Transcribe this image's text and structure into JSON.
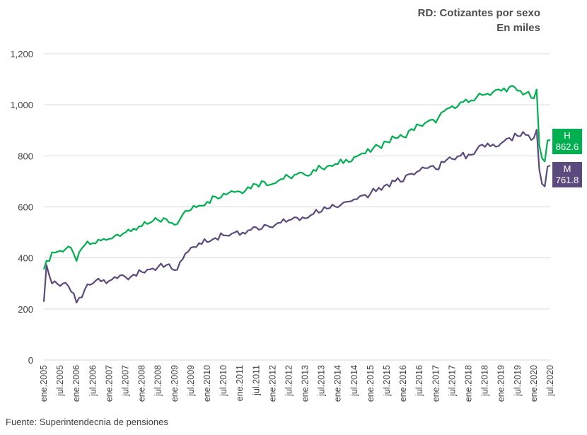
{
  "chart_data": {
    "type": "line",
    "title": "RD: Cotizantes por sexo",
    "subtitle": "En miles",
    "ylim": [
      0,
      1200
    ],
    "yticks": [
      0,
      200,
      400,
      600,
      800,
      1000,
      1200
    ],
    "ytick_labels": [
      "0",
      "200",
      "400",
      "600",
      "800",
      "1,000",
      "1,200"
    ],
    "x_start": "ene.2005",
    "x_end": "jul.2020",
    "x_tick_labels": [
      "ene.2005",
      "jul.2005",
      "ene.2006",
      "jul.2006",
      "ene.2007",
      "jul.2007",
      "ene.2008",
      "jul.2008",
      "ene.2009",
      "jul.2009",
      "ene.2010",
      "jul.2010",
      "ene.2011",
      "jul.2011",
      "ene.2012",
      "jul.2012",
      "ene.2013",
      "jul.2013",
      "ene.2014",
      "jul.2014",
      "ene.2015",
      "jul.2015",
      "ene.2016",
      "jul.2016",
      "ene.2017",
      "jul.2017",
      "ene.2018",
      "jul.2018",
      "ene.2019",
      "jul.2019",
      "ene.2020",
      "jul.2020"
    ],
    "grid": true,
    "series": [
      {
        "name": "H",
        "color": "#00b050",
        "end_label": "862.6",
        "points": [
          [
            "ene.2005",
            355
          ],
          [
            "abr.2005",
            422
          ],
          [
            "jul.2005",
            428
          ],
          [
            "oct.2005",
            445
          ],
          [
            "ene.2006",
            388
          ],
          [
            "abr.2006",
            450
          ],
          [
            "jul.2006",
            458
          ],
          [
            "oct.2006",
            468
          ],
          [
            "ene.2007",
            475
          ],
          [
            "abr.2007",
            492
          ],
          [
            "jul.2007",
            500
          ],
          [
            "oct.2007",
            515
          ],
          [
            "ene.2008",
            525
          ],
          [
            "abr.2008",
            538
          ],
          [
            "jul.2008",
            548
          ],
          [
            "oct.2008",
            552
          ],
          [
            "ene.2009",
            530
          ],
          [
            "abr.2009",
            570
          ],
          [
            "jul.2009",
            588
          ],
          [
            "oct.2009",
            605
          ],
          [
            "ene.2010",
            620
          ],
          [
            "abr.2010",
            640
          ],
          [
            "jul.2010",
            652
          ],
          [
            "oct.2010",
            662
          ],
          [
            "ene.2011",
            660
          ],
          [
            "abr.2011",
            678
          ],
          [
            "jul.2011",
            688
          ],
          [
            "oct.2011",
            698
          ],
          [
            "ene.2012",
            690
          ],
          [
            "abr.2012",
            708
          ],
          [
            "jul.2012",
            718
          ],
          [
            "oct.2012",
            728
          ],
          [
            "ene.2013",
            725
          ],
          [
            "abr.2013",
            745
          ],
          [
            "jul.2013",
            752
          ],
          [
            "oct.2013",
            762
          ],
          [
            "ene.2014",
            768
          ],
          [
            "abr.2014",
            785
          ],
          [
            "jul.2014",
            795
          ],
          [
            "oct.2014",
            810
          ],
          [
            "ene.2015",
            815
          ],
          [
            "abr.2015",
            838
          ],
          [
            "jul.2015",
            855
          ],
          [
            "oct.2015",
            870
          ],
          [
            "ene.2016",
            875
          ],
          [
            "abr.2016",
            905
          ],
          [
            "jul.2016",
            920
          ],
          [
            "oct.2016",
            935
          ],
          [
            "ene.2017",
            930
          ],
          [
            "abr.2017",
            975
          ],
          [
            "jul.2017",
            995
          ],
          [
            "oct.2017",
            1010
          ],
          [
            "ene.2018",
            1010
          ],
          [
            "abr.2018",
            1030
          ],
          [
            "jul.2018",
            1040
          ],
          [
            "oct.2018",
            1050
          ],
          [
            "ene.2019",
            1055
          ],
          [
            "abr.2019",
            1070
          ],
          [
            "jul.2019",
            1055
          ],
          [
            "oct.2019",
            1045
          ],
          [
            "ene.2020",
            1025
          ],
          [
            "feb.2020",
            1060
          ],
          [
            "mar.2020",
            840
          ],
          [
            "abr.2020",
            790
          ],
          [
            "may.2020",
            778
          ],
          [
            "jun.2020",
            860
          ],
          [
            "jul.2020",
            862.6
          ]
        ]
      },
      {
        "name": "M",
        "color": "#5b4a7e",
        "end_label": "761.8",
        "points": [
          [
            "ene.2005",
            228
          ],
          [
            "feb.2005",
            372
          ],
          [
            "abr.2005",
            300
          ],
          [
            "jul.2005",
            290
          ],
          [
            "oct.2005",
            290
          ],
          [
            "ene.2006",
            225
          ],
          [
            "abr.2006",
            275
          ],
          [
            "jul.2006",
            300
          ],
          [
            "oct.2006",
            308
          ],
          [
            "ene.2007",
            310
          ],
          [
            "abr.2007",
            320
          ],
          [
            "jul.2007",
            325
          ],
          [
            "oct.2007",
            335
          ],
          [
            "ene.2008",
            345
          ],
          [
            "abr.2008",
            355
          ],
          [
            "jul.2008",
            365
          ],
          [
            "oct.2008",
            372
          ],
          [
            "ene.2009",
            352
          ],
          [
            "abr.2009",
            395
          ],
          [
            "jul.2009",
            440
          ],
          [
            "oct.2009",
            458
          ],
          [
            "ene.2010",
            462
          ],
          [
            "abr.2010",
            478
          ],
          [
            "jul.2010",
            488
          ],
          [
            "oct.2010",
            495
          ],
          [
            "ene.2011",
            490
          ],
          [
            "abr.2011",
            508
          ],
          [
            "jul.2011",
            520
          ],
          [
            "oct.2011",
            530
          ],
          [
            "ene.2012",
            520
          ],
          [
            "abr.2012",
            538
          ],
          [
            "jul.2012",
            548
          ],
          [
            "oct.2012",
            558
          ],
          [
            "ene.2013",
            555
          ],
          [
            "abr.2013",
            572
          ],
          [
            "jul.2013",
            582
          ],
          [
            "oct.2013",
            595
          ],
          [
            "ene.2014",
            598
          ],
          [
            "abr.2014",
            620
          ],
          [
            "jul.2014",
            630
          ],
          [
            "oct.2014",
            645
          ],
          [
            "ene.2015",
            652
          ],
          [
            "abr.2015",
            675
          ],
          [
            "jul.2015",
            688
          ],
          [
            "oct.2015",
            700
          ],
          [
            "ene.2016",
            700
          ],
          [
            "abr.2016",
            730
          ],
          [
            "jul.2016",
            742
          ],
          [
            "oct.2016",
            752
          ],
          [
            "ene.2017",
            748
          ],
          [
            "abr.2017",
            775
          ],
          [
            "jul.2017",
            788
          ],
          [
            "oct.2017",
            800
          ],
          [
            "ene.2018",
            805
          ],
          [
            "abr.2018",
            825
          ],
          [
            "jul.2018",
            835
          ],
          [
            "oct.2018",
            845
          ],
          [
            "ene.2019",
            850
          ],
          [
            "abr.2019",
            870
          ],
          [
            "jul.2019",
            878
          ],
          [
            "oct.2019",
            882
          ],
          [
            "ene.2020",
            870
          ],
          [
            "feb.2020",
            902
          ],
          [
            "mar.2020",
            745
          ],
          [
            "abr.2020",
            690
          ],
          [
            "may.2020",
            680
          ],
          [
            "jun.2020",
            758
          ],
          [
            "jul.2020",
            761.8
          ]
        ]
      }
    ]
  },
  "source": "Fuente: Superintendecnia de pensiones"
}
